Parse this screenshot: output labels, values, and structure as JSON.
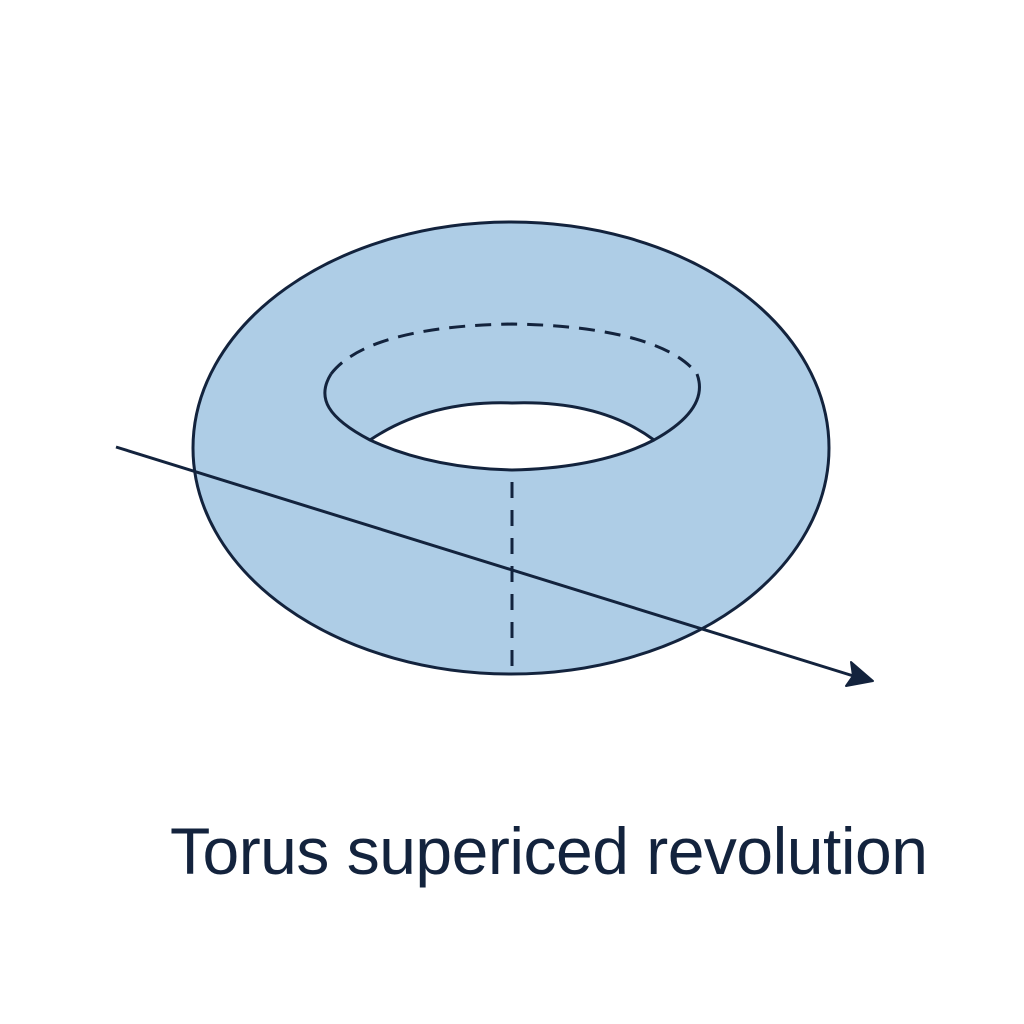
{
  "caption": "Torus supericed revolution",
  "colors": {
    "background": "#ffffff",
    "torus_fill": "#aecde6",
    "stroke": "#13233d",
    "hole": "#ffffff"
  },
  "figure": {
    "shape": "torus",
    "hidden_edges": "dashed",
    "axis_arrow": "diagonal line with arrowhead crossing the torus"
  }
}
